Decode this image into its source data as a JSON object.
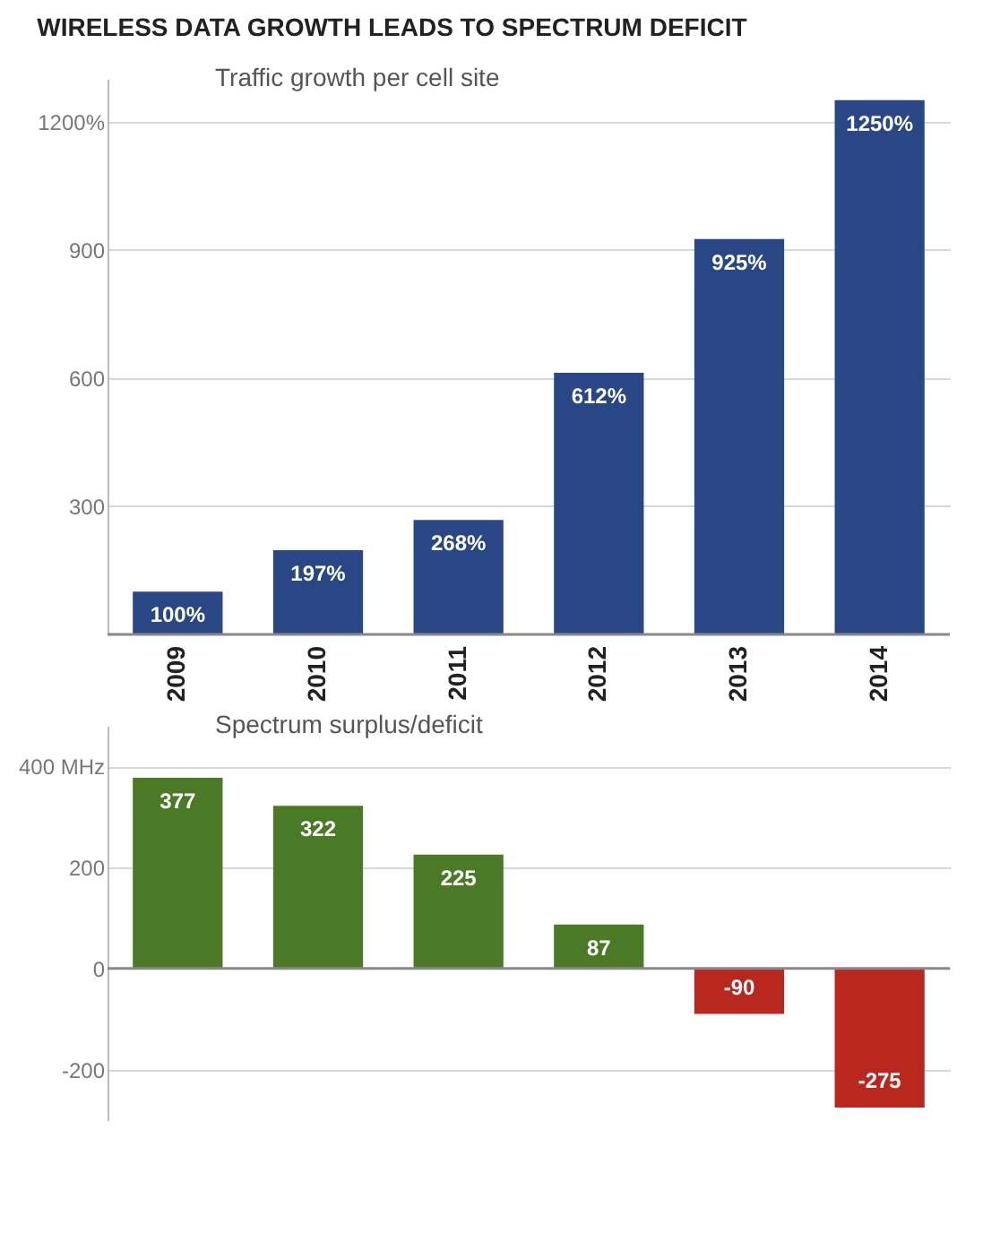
{
  "chart_data": [
    {
      "type": "bar",
      "title": "WIRELESS DATA GROWTH LEADS TO SPECTRUM DEFICIT",
      "annotations": [
        "Traffic growth per cell site"
      ],
      "categories": [
        "2009",
        "2010",
        "2011",
        "2012",
        "2013",
        "2014"
      ],
      "values": [
        100,
        197,
        268,
        612,
        925,
        1250
      ],
      "value_labels": [
        "100%",
        "197%",
        "268%",
        "612%",
        "925%",
        "1250%"
      ],
      "color": "#2a4785",
      "ylim": [
        0,
        1300
      ],
      "yticks": [
        300,
        600,
        900,
        {
          "value": 1200,
          "label": "1200%"
        }
      ],
      "grid": "y"
    },
    {
      "type": "bar",
      "annotations": [
        "Spectrum surplus/deficit"
      ],
      "categories": [
        "2009",
        "2010",
        "2011",
        "2012",
        "2013",
        "2014"
      ],
      "values": [
        377,
        322,
        225,
        87,
        -90,
        -275
      ],
      "colors": [
        "#4b7a26",
        "#4b7a26",
        "#4b7a26",
        "#4b7a26",
        "#b8281f",
        "#b8281f"
      ],
      "data_labels": true,
      "ylim": [
        -300,
        480
      ],
      "yticks": [
        {
          "value": 400,
          "label": "400 MHz"
        },
        200,
        0,
        -200
      ],
      "grid": "y",
      "tick_labels": "y"
    }
  ]
}
